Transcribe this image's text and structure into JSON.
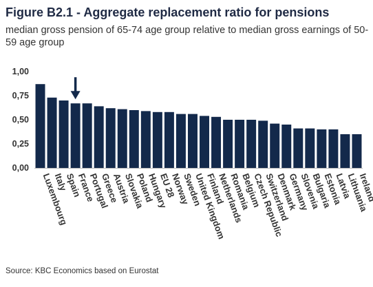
{
  "header": {
    "title": "Figure B2.1 - Aggregate replacement ratio for pensions",
    "subtitle": "median gross pension of 65-74 age group relative to median gross earnings of 50-59 age group"
  },
  "footer": {
    "source": "Source: KBC Economics based on Eurostat"
  },
  "colors": {
    "bar": "#13294b",
    "grid": "#d9d9d9",
    "arrow": "#13294b"
  },
  "chart_data": {
    "type": "bar",
    "categories": [
      "Luxembourg",
      "Italy",
      "Spain",
      "France",
      "Portugal",
      "Greece",
      "Austria",
      "Slovakia",
      "Poland",
      "Hungary",
      "EU 28",
      "Norway",
      "Sweden",
      "United Kingdom",
      "Finland",
      "Netherlands",
      "Romania",
      "Belgium",
      "Czech Republic",
      "Switzerland",
      "Denmark",
      "Germany",
      "Slovenia",
      "Bulgaria",
      "Estonia",
      "Latvia",
      "Lithuania",
      "Ireland"
    ],
    "values": [
      0.87,
      0.73,
      0.7,
      0.67,
      0.67,
      0.64,
      0.62,
      0.61,
      0.6,
      0.59,
      0.58,
      0.58,
      0.56,
      0.56,
      0.54,
      0.53,
      0.5,
      0.5,
      0.5,
      0.49,
      0.46,
      0.45,
      0.41,
      0.41,
      0.4,
      0.4,
      0.35,
      0.35
    ],
    "ylim": [
      0,
      1.0
    ],
    "yticks": [
      "0,00",
      "0,25",
      "0,50",
      "0,75",
      "1,00"
    ],
    "ytick_values": [
      0,
      0.25,
      0.5,
      0.75,
      1.0
    ],
    "grid": false,
    "legend": "none",
    "annotation": {
      "type": "arrow",
      "category": "France"
    }
  }
}
